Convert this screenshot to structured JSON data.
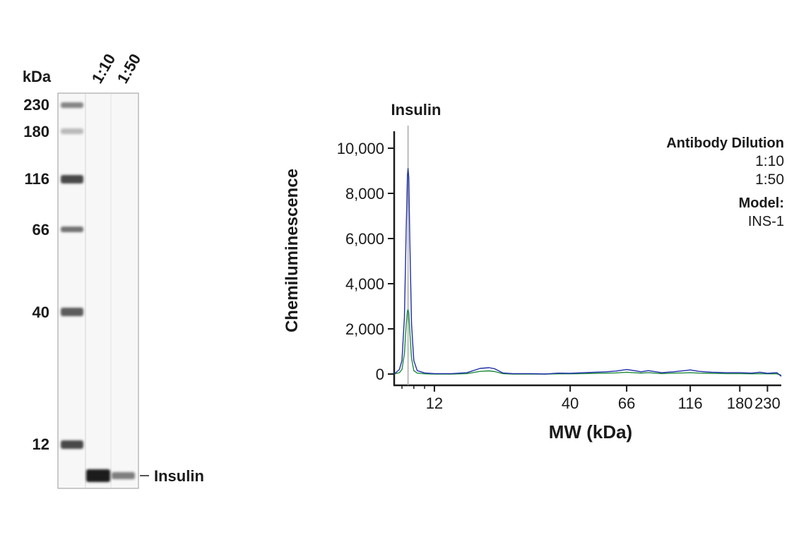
{
  "blot": {
    "unit_label": "kDa",
    "lanes": [
      "1:10",
      "1:50"
    ],
    "markers": [
      "230",
      "180",
      "116",
      "66",
      "40",
      "12"
    ],
    "ladder_kda": [
      230,
      180,
      116,
      66,
      40,
      12
    ],
    "band_label": "Insulin",
    "band_intensity": [
      1.0,
      0.45
    ]
  },
  "chart_data": {
    "type": "line",
    "title": "",
    "peak_label": "Insulin",
    "xlabel": "MW (kDa)",
    "ylabel": "Chemiluminescence",
    "x_scale": "log",
    "xlim": [
      8.4,
      260
    ],
    "ylim": [
      0,
      10500
    ],
    "x_ticks": [
      12,
      40,
      66,
      116,
      180,
      230
    ],
    "x_tick_labels": [
      "12",
      "40",
      "66",
      "116",
      "180",
      "230"
    ],
    "y_ticks": [
      0,
      2000,
      4000,
      6000,
      8000,
      10000
    ],
    "y_tick_labels": [
      "0",
      "2,000",
      "4,000",
      "6,000",
      "8,000",
      "10,000"
    ],
    "peak_marker_x": 9.5,
    "legend_title": "Antibody Dilution",
    "model_label": "Model:",
    "model_value": "INS-1",
    "series": [
      {
        "name": "1:10",
        "color": "#1f2fa8",
        "x": [
          8.4,
          8.8,
          9.0,
          9.2,
          9.35,
          9.45,
          9.5,
          9.56,
          9.65,
          9.8,
          10.0,
          10.3,
          11,
          12,
          14,
          16,
          18,
          19.5,
          20.5,
          22,
          24,
          28,
          32,
          36,
          40,
          45,
          50,
          55,
          60,
          66,
          70,
          75,
          80,
          90,
          100,
          110,
          116,
          125,
          140,
          160,
          180,
          200,
          215,
          230,
          250,
          260
        ],
        "values": [
          0,
          200,
          600,
          2500,
          6500,
          8800,
          9100,
          8700,
          6000,
          2200,
          600,
          150,
          50,
          20,
          20,
          60,
          250,
          280,
          230,
          50,
          20,
          20,
          0,
          40,
          30,
          60,
          80,
          100,
          130,
          200,
          160,
          100,
          150,
          60,
          100,
          150,
          180,
          120,
          80,
          60,
          60,
          40,
          80,
          30,
          60,
          -100
        ]
      },
      {
        "name": "1:50",
        "color": "#1e8a3c",
        "x": [
          8.4,
          8.8,
          9.0,
          9.2,
          9.35,
          9.45,
          9.5,
          9.56,
          9.65,
          9.8,
          10.0,
          10.3,
          11,
          12,
          14,
          16,
          18,
          19.5,
          20.5,
          22,
          24,
          28,
          32,
          36,
          40,
          45,
          50,
          55,
          60,
          66,
          70,
          75,
          80,
          90,
          100,
          110,
          116,
          125,
          140,
          160,
          180,
          200,
          215,
          230,
          250,
          260
        ],
        "values": [
          0,
          60,
          200,
          900,
          2200,
          2800,
          2850,
          2700,
          1900,
          700,
          150,
          40,
          10,
          0,
          0,
          20,
          120,
          140,
          110,
          20,
          0,
          0,
          0,
          10,
          10,
          20,
          30,
          40,
          50,
          80,
          60,
          40,
          60,
          20,
          40,
          50,
          60,
          40,
          30,
          20,
          20,
          10,
          20,
          10,
          10,
          -50
        ]
      }
    ]
  }
}
